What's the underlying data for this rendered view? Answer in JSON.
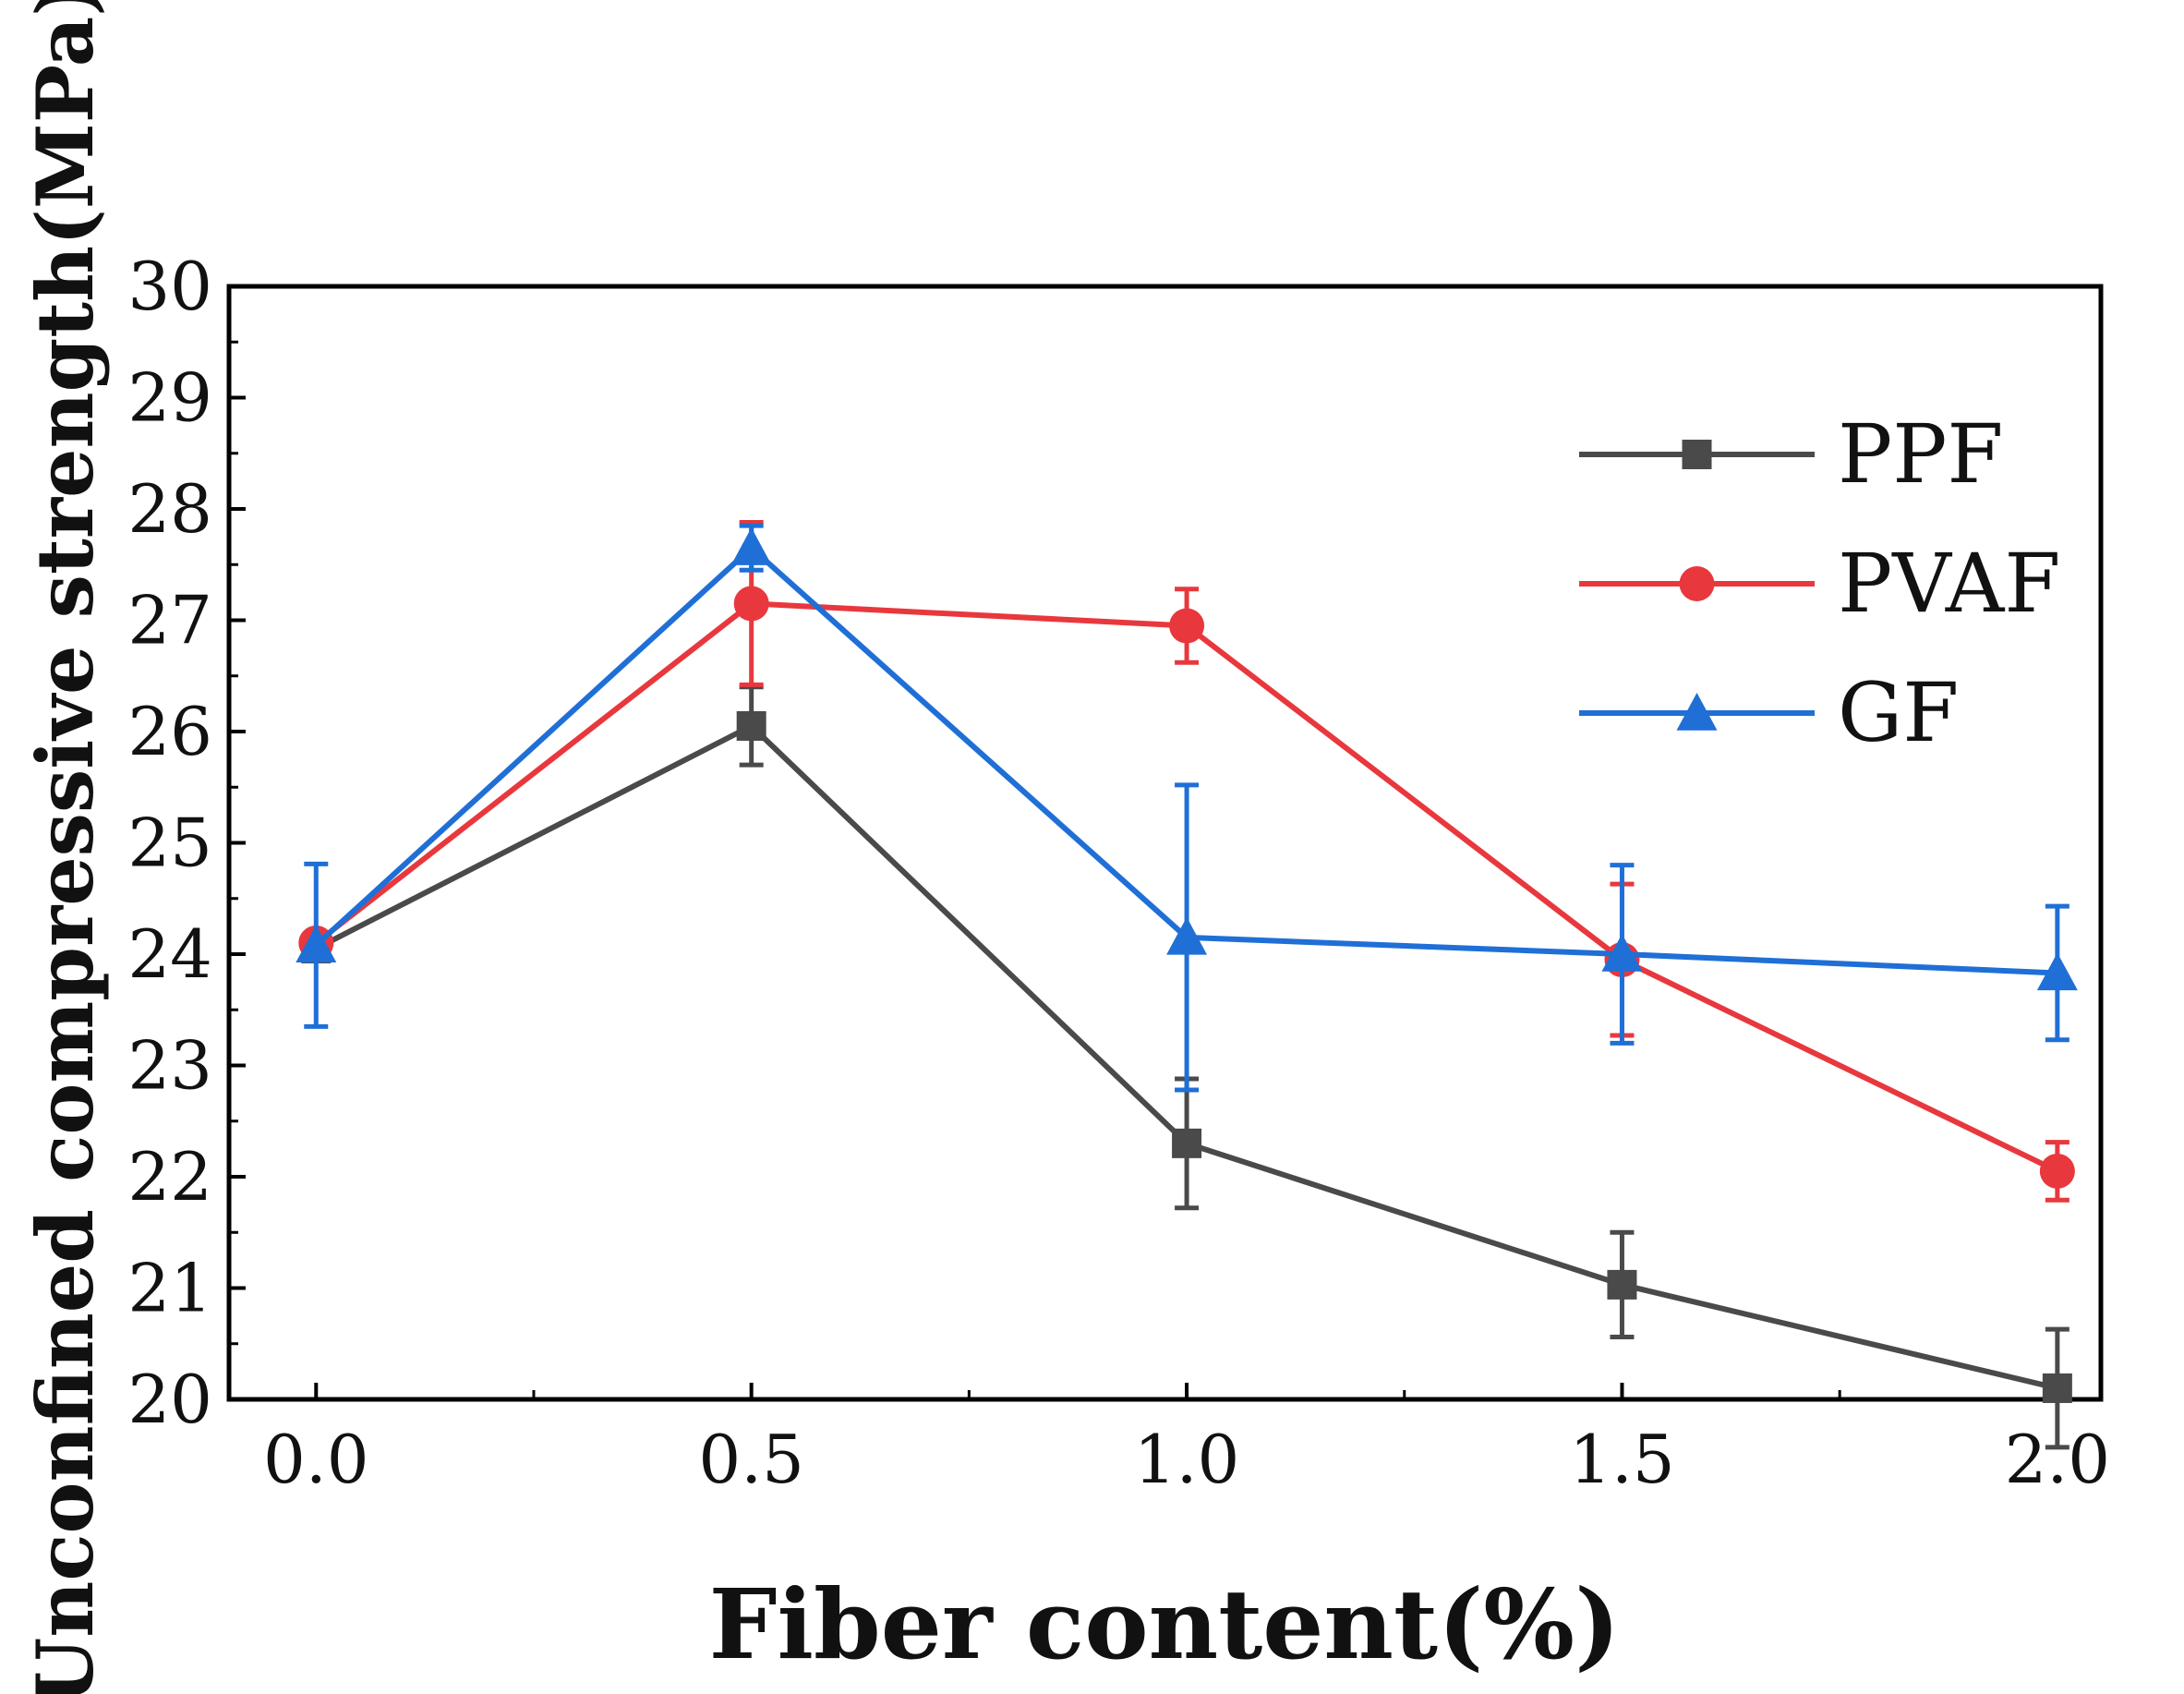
{
  "chart_data": {
    "type": "line",
    "title": "",
    "xlabel": "Fiber content(%)",
    "ylabel": "Unconfined compressive strength(MPa)",
    "x": [
      0.0,
      0.5,
      1.0,
      1.5,
      2.0
    ],
    "x_tick_labels": [
      "0.0",
      "0.5",
      "1.0",
      "1.5",
      "2.0"
    ],
    "y_ticks": [
      20,
      21,
      22,
      23,
      24,
      25,
      26,
      27,
      28,
      29,
      30
    ],
    "y_tick_labels": [
      "20",
      "21",
      "22",
      "23",
      "24",
      "25",
      "26",
      "27",
      "28",
      "29",
      "30"
    ],
    "xlim": [
      -0.1,
      2.05
    ],
    "ylim": [
      20,
      30
    ],
    "grid": false,
    "legend_position": "top-right",
    "series": [
      {
        "name": "PPF",
        "color": "#4a4a4a",
        "marker": "square",
        "values": [
          24.05,
          26.05,
          22.3,
          21.03,
          20.1
        ],
        "errors": [
          0.0,
          0.35,
          0.58,
          0.47,
          0.53
        ]
      },
      {
        "name": "PVAF",
        "color": "#e8383d",
        "marker": "circle",
        "values": [
          24.1,
          27.15,
          26.95,
          23.95,
          22.05
        ],
        "errors": [
          0.0,
          0.73,
          0.33,
          0.68,
          0.26
        ]
      },
      {
        "name": "GF",
        "color": "#1f6fd6",
        "marker": "triangle",
        "values": [
          24.08,
          27.65,
          24.15,
          24.0,
          23.83
        ],
        "errors": [
          0.73,
          0.2,
          1.37,
          0.8,
          0.6
        ]
      }
    ]
  }
}
